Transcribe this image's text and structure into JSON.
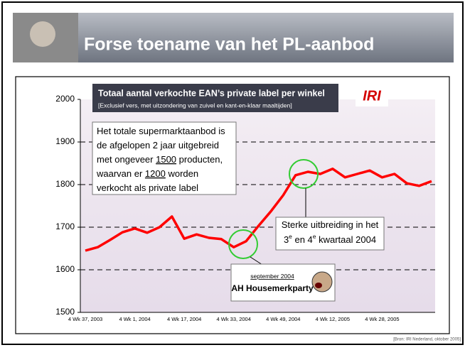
{
  "slide_title": "Forse toename van het PL-aanbod",
  "source": "[Bron: IRI Nederland, oktober 2005]",
  "chart_data": {
    "type": "line",
    "title": "Totaal aantal verkochte EAN’s private label per winkel",
    "subtitle": "[Exclusief vers, met uitzondering van zuivel en kant-en-klaar maaltijden]",
    "logo": "IRI",
    "categories": [
      "4 Wk 37, 2003",
      null,
      null,
      null,
      "4 Wk 1, 2004",
      null,
      null,
      null,
      "4 Wk 17, 2004",
      null,
      null,
      null,
      "4 Wk 33, 2004",
      null,
      null,
      null,
      "4 Wk 49, 2004",
      null,
      null,
      null,
      "4 Wk 12, 2005",
      null,
      null,
      null,
      "4 Wk 28, 2005",
      null,
      null,
      null,
      null
    ],
    "series": [
      {
        "name": "Totaal aantal verkochte EAN’s private label per winkel",
        "color": "#ff0000",
        "values": [
          1645,
          1653,
          1670,
          1688,
          1697,
          1687,
          1700,
          1725,
          1673,
          1683,
          1675,
          1672,
          1653,
          1667,
          1703,
          1737,
          1775,
          1822,
          1830,
          1825,
          1837,
          1817,
          1825,
          1833,
          1817,
          1825,
          1803,
          1797,
          1808
        ]
      }
    ],
    "ylim": [
      1500,
      2000
    ],
    "yticks": [
      1500,
      1600,
      1700,
      1800,
      1900,
      2000
    ],
    "grid": true,
    "annotations": [
      {
        "lines": [
          [
            {
              "text": "Het totale supermarktaanbod is"
            }
          ],
          [
            {
              "text": "de afgelopen 2 jaar uitgebreid"
            }
          ],
          [
            {
              "text": "met ongeveer "
            },
            {
              "text": "1500",
              "u": true
            },
            {
              "text": " producten,"
            }
          ],
          [
            {
              "text": "waarvan er "
            },
            {
              "text": "1200",
              "u": true
            },
            {
              "text": " worden"
            }
          ],
          [
            {
              "text": "verkocht als private label"
            }
          ]
        ]
      },
      {
        "lines": [
          [
            {
              "text": "Sterke uitbreiding in het"
            }
          ],
          [
            {
              "text": "3"
            },
            {
              "text": "e",
              "sup": true
            },
            {
              "text": " en 4"
            },
            {
              "text": "e",
              "sup": true
            },
            {
              "text": " kwartaal 2004"
            }
          ]
        ]
      },
      {
        "lines": [
          [
            {
              "text": "september 2004",
              "u": true
            }
          ],
          [
            {
              "text": "AH Housemerkparty",
              "b": true
            }
          ]
        ]
      }
    ]
  }
}
